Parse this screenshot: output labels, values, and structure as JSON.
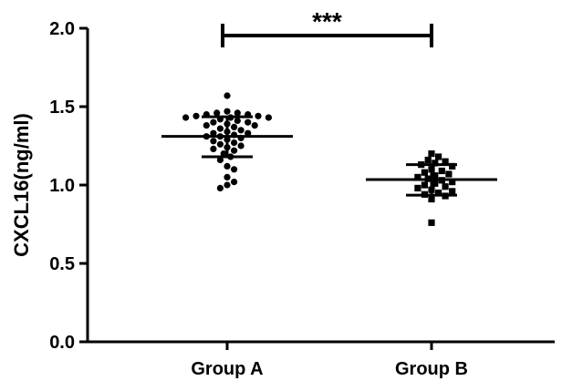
{
  "chart_data": {
    "type": "scatter",
    "subtype": "dot-plot with mean and SD",
    "title": "",
    "xlabel": "",
    "ylabel": "CXCL16(ng/ml)",
    "ylim": [
      0,
      2.0
    ],
    "yticks": [
      "0.0",
      "0.5",
      "1.0",
      "1.5",
      "2.0"
    ],
    "grid": false,
    "categories": [
      "Group A",
      "Group B"
    ],
    "series": [
      {
        "category": "Group A",
        "marker": "circle",
        "mean": 1.31,
        "sd_upper": 1.435,
        "sd_lower": 1.18,
        "values": [
          1.57,
          1.47,
          1.46,
          1.46,
          1.45,
          1.45,
          1.44,
          1.44,
          1.43,
          1.43,
          1.43,
          1.42,
          1.41,
          1.4,
          1.4,
          1.39,
          1.38,
          1.38,
          1.37,
          1.36,
          1.35,
          1.34,
          1.33,
          1.33,
          1.32,
          1.31,
          1.31,
          1.3,
          1.29,
          1.28,
          1.27,
          1.26,
          1.25,
          1.24,
          1.23,
          1.22,
          1.2,
          1.18,
          1.16,
          1.12,
          1.1,
          1.05,
          1.02,
          1.0,
          0.98
        ]
      },
      {
        "category": "Group B",
        "marker": "square",
        "mean": 1.035,
        "sd_upper": 1.13,
        "sd_lower": 0.935,
        "values": [
          1.2,
          1.18,
          1.16,
          1.15,
          1.14,
          1.13,
          1.12,
          1.1,
          1.09,
          1.08,
          1.07,
          1.06,
          1.05,
          1.04,
          1.03,
          1.02,
          1.01,
          1.0,
          0.99,
          0.98,
          0.97,
          0.96,
          0.95,
          0.94,
          0.93,
          0.91,
          0.76
        ]
      }
    ],
    "significance": {
      "between": [
        "Group A",
        "Group B"
      ],
      "label": "***",
      "y": 2.0
    }
  }
}
